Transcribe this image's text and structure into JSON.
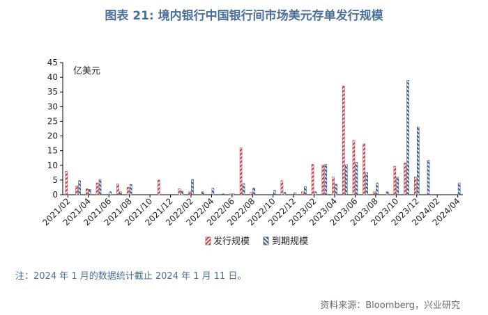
{
  "title": "图表 21: 境内银行中国银行间市场美元存单发行规模",
  "note": "注：2024 年 1 月的数据统计截止 2024 年 1 月 11 日。",
  "source": "资料来源：Bloomberg，兴业研究",
  "colors": {
    "issue": "#c0404a",
    "maturity": "#3d5a86"
  },
  "chart_data": {
    "type": "bar",
    "unit_label": "亿美元",
    "ylim": [
      0,
      45
    ],
    "yticks": [
      0,
      5,
      10,
      15,
      20,
      25,
      30,
      35,
      40,
      45
    ],
    "categories": [
      "2021/02",
      "2021/03",
      "2021/04",
      "2021/05",
      "2021/06",
      "2021/07",
      "2021/08",
      "2021/09",
      "2021/10",
      "2021/11",
      "2021/12",
      "2022/01",
      "2022/02",
      "2022/03",
      "2022/04",
      "2022/05",
      "2022/06",
      "2022/07",
      "2022/08",
      "2022/09",
      "2022/10",
      "2022/11",
      "2022/12",
      "2023/01",
      "2023/02",
      "2023/03",
      "2023/04",
      "2023/05",
      "2023/06",
      "2023/07",
      "2023/08",
      "2023/09",
      "2023/10",
      "2023/11",
      "2023/12",
      "2024/01",
      "2024/02",
      "2024/03",
      "2024/04"
    ],
    "xtick_labels": [
      "2021/02",
      "2021/04",
      "2021/06",
      "2021/08",
      "2021/10",
      "2021/12",
      "2022/02",
      "2022/04",
      "2022/06",
      "2022/08",
      "2022/10",
      "2022/12",
      "2023/02",
      "2023/04",
      "2023/06",
      "2023/08",
      "2023/10",
      "2023/12",
      "2024/02",
      "2024/04"
    ],
    "series": [
      {
        "name": "发行规模",
        "values": [
          8,
          3,
          2,
          4,
          0,
          3.7,
          2.5,
          0,
          0,
          5,
          0,
          2,
          1,
          0,
          0,
          0,
          0.3,
          16,
          0.8,
          0,
          0,
          4.8,
          0,
          1,
          10.3,
          10,
          6,
          37,
          18.5,
          17.3,
          1,
          0,
          9.7,
          10.8,
          6,
          0,
          0,
          0,
          0
        ]
      },
      {
        "name": "到期规模",
        "values": [
          0,
          4.8,
          1.8,
          5.2,
          1,
          1,
          3.5,
          0,
          0,
          0,
          0,
          1.2,
          5.2,
          1,
          2.2,
          0.3,
          0.3,
          3.8,
          2.3,
          0,
          1.5,
          0.8,
          0.7,
          2.8,
          1,
          10.3,
          3.6,
          10.2,
          11,
          7.5,
          4,
          1,
          6,
          39,
          23,
          11.8,
          0,
          0,
          4
        ]
      }
    ],
    "legend_position": "bottom-center",
    "grid": false
  }
}
